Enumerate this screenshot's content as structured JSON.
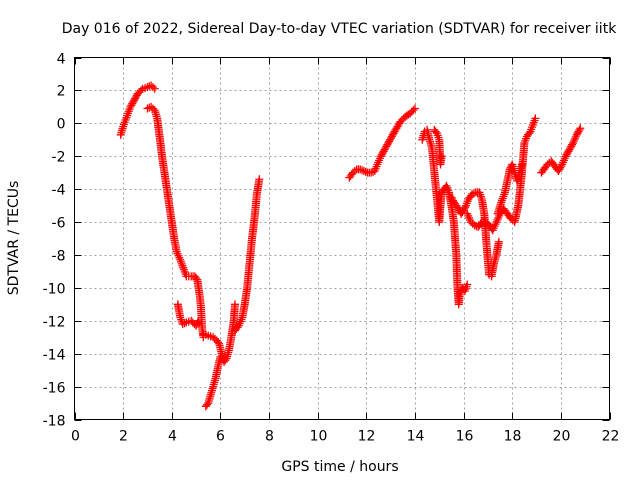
{
  "chart_data": {
    "type": "scatter",
    "title": "Day 016 of 2022, Sidereal Day-to-day VTEC variation (SDTVAR) for receiver iitk",
    "xlabel": "GPS time / hours",
    "ylabel": "SDTVAR / TECUs",
    "xlim": [
      0,
      22
    ],
    "ylim": [
      -18,
      4
    ],
    "xticks": [
      0,
      2,
      4,
      6,
      8,
      10,
      12,
      14,
      16,
      18,
      20,
      22
    ],
    "yticks": [
      -18,
      -16,
      -14,
      -12,
      -10,
      -8,
      -6,
      -4,
      -2,
      0,
      2,
      4
    ],
    "grid": true,
    "marker": "+",
    "series": [
      {
        "name": "SDTVAR",
        "color": "#ff0000",
        "segments": [
          [
            [
              1.9,
              -0.7
            ],
            [
              2.0,
              -0.2
            ],
            [
              2.1,
              0.2
            ],
            [
              2.2,
              0.6
            ],
            [
              2.3,
              1.0
            ],
            [
              2.45,
              1.4
            ],
            [
              2.6,
              1.8
            ],
            [
              2.8,
              2.1
            ],
            [
              3.0,
              2.2
            ],
            [
              3.15,
              2.3
            ],
            [
              3.3,
              2.1
            ]
          ],
          [
            [
              3.0,
              0.9
            ],
            [
              3.15,
              1.0
            ],
            [
              3.3,
              0.8
            ],
            [
              3.4,
              0.3
            ],
            [
              3.5,
              -0.8
            ],
            [
              3.6,
              -2.0
            ],
            [
              3.7,
              -3.0
            ],
            [
              3.8,
              -4.0
            ],
            [
              3.9,
              -5.0
            ],
            [
              4.0,
              -6.0
            ],
            [
              4.1,
              -7.0
            ],
            [
              4.2,
              -7.8
            ],
            [
              4.35,
              -8.3
            ],
            [
              4.5,
              -8.9
            ],
            [
              4.6,
              -9.3
            ],
            [
              4.8,
              -9.3
            ],
            [
              4.95,
              -9.3
            ],
            [
              5.05,
              -9.5
            ],
            [
              5.15,
              -10.5
            ],
            [
              5.2,
              -11.2
            ],
            [
              5.25,
              -12.5
            ],
            [
              5.3,
              -13.0
            ]
          ],
          [
            [
              4.25,
              -11.0
            ],
            [
              4.35,
              -11.8
            ],
            [
              4.45,
              -12.2
            ],
            [
              4.6,
              -12.1
            ],
            [
              4.8,
              -12.0
            ],
            [
              5.0,
              -12.3
            ],
            [
              5.1,
              -12.0
            ]
          ],
          [
            [
              5.3,
              -12.8
            ],
            [
              5.5,
              -12.9
            ],
            [
              5.7,
              -13.0
            ],
            [
              5.85,
              -13.2
            ],
            [
              5.95,
              -13.4
            ],
            [
              6.05,
              -14.0
            ],
            [
              6.15,
              -14.5
            ],
            [
              6.25,
              -14.3
            ],
            [
              6.35,
              -13.8
            ],
            [
              6.45,
              -13.0
            ],
            [
              6.55,
              -12.0
            ],
            [
              6.6,
              -11.0
            ]
          ],
          [
            [
              5.4,
              -17.2
            ],
            [
              5.5,
              -17.0
            ],
            [
              5.6,
              -16.5
            ],
            [
              5.7,
              -16.0
            ],
            [
              5.8,
              -15.5
            ],
            [
              5.9,
              -14.8
            ],
            [
              6.0,
              -14.2
            ]
          ],
          [
            [
              6.6,
              -12.6
            ],
            [
              6.75,
              -12.3
            ],
            [
              6.9,
              -11.8
            ],
            [
              7.0,
              -11.0
            ],
            [
              7.1,
              -10.0
            ],
            [
              7.2,
              -8.5
            ],
            [
              7.3,
              -7.0
            ],
            [
              7.4,
              -5.8
            ],
            [
              7.5,
              -4.3
            ],
            [
              7.6,
              -3.4
            ]
          ],
          [
            [
              11.3,
              -3.3
            ],
            [
              11.45,
              -3.0
            ],
            [
              11.6,
              -2.8
            ],
            [
              11.75,
              -2.8
            ],
            [
              11.9,
              -2.9
            ],
            [
              12.05,
              -3.0
            ],
            [
              12.2,
              -3.0
            ],
            [
              12.35,
              -2.9
            ],
            [
              12.45,
              -2.5
            ],
            [
              12.6,
              -2.0
            ],
            [
              12.75,
              -1.6
            ],
            [
              12.9,
              -1.2
            ],
            [
              13.05,
              -0.8
            ],
            [
              13.2,
              -0.4
            ],
            [
              13.4,
              0.1
            ],
            [
              13.6,
              0.4
            ],
            [
              13.8,
              0.6
            ],
            [
              14.0,
              0.9
            ]
          ],
          [
            [
              14.3,
              -1.0
            ],
            [
              14.4,
              -0.5
            ],
            [
              14.5,
              -0.4
            ],
            [
              14.6,
              -1.0
            ],
            [
              14.7,
              -1.5
            ],
            [
              14.8,
              -3.0
            ],
            [
              14.9,
              -4.5
            ],
            [
              15.0,
              -6.0
            ],
            [
              15.05,
              -5.0
            ],
            [
              15.1,
              -4.2
            ],
            [
              15.2,
              -4.0
            ]
          ],
          [
            [
              14.8,
              -0.4
            ],
            [
              14.9,
              -0.6
            ],
            [
              15.0,
              -1.0
            ],
            [
              15.05,
              -2.5
            ],
            [
              15.1,
              -2.0
            ]
          ],
          [
            [
              15.2,
              -4.0
            ],
            [
              15.3,
              -3.8
            ],
            [
              15.4,
              -4.2
            ],
            [
              15.5,
              -5.0
            ],
            [
              15.6,
              -6.0
            ],
            [
              15.7,
              -8.0
            ],
            [
              15.75,
              -10.0
            ],
            [
              15.8,
              -11.0
            ],
            [
              15.85,
              -10.3
            ],
            [
              15.95,
              -10.0
            ],
            [
              16.05,
              -10.2
            ],
            [
              16.15,
              -9.8
            ]
          ],
          [
            [
              15.5,
              -4.5
            ],
            [
              15.6,
              -4.8
            ],
            [
              15.7,
              -5.0
            ],
            [
              15.8,
              -5.2
            ],
            [
              15.9,
              -5.5
            ],
            [
              16.0,
              -5.3
            ],
            [
              16.1,
              -5.0
            ],
            [
              16.2,
              -4.6
            ],
            [
              16.35,
              -4.3
            ],
            [
              16.5,
              -4.2
            ],
            [
              16.65,
              -4.2
            ],
            [
              16.75,
              -4.6
            ],
            [
              16.85,
              -5.5
            ],
            [
              16.95,
              -7.5
            ],
            [
              17.05,
              -9.2
            ],
            [
              17.15,
              -9.3
            ],
            [
              17.25,
              -8.5
            ],
            [
              17.35,
              -8.0
            ],
            [
              17.45,
              -7.2
            ]
          ],
          [
            [
              16.15,
              -5.5
            ],
            [
              16.3,
              -6.0
            ],
            [
              16.45,
              -6.2
            ],
            [
              16.6,
              -6.3
            ],
            [
              16.75,
              -6.0
            ],
            [
              16.9,
              -6.0
            ],
            [
              17.05,
              -6.2
            ],
            [
              17.2,
              -6.5
            ],
            [
              17.35,
              -6.0
            ],
            [
              17.5,
              -5.5
            ],
            [
              17.65,
              -5.2
            ],
            [
              17.8,
              -5.5
            ],
            [
              17.95,
              -5.8
            ],
            [
              18.1,
              -6.0
            ],
            [
              18.25,
              -5.0
            ],
            [
              18.4,
              -3.0
            ],
            [
              18.5,
              -1.2
            ],
            [
              18.6,
              -0.8
            ],
            [
              18.75,
              -0.5
            ],
            [
              18.85,
              -0.1
            ],
            [
              18.95,
              0.3
            ]
          ],
          [
            [
              17.4,
              -5.5
            ],
            [
              17.55,
              -4.8
            ],
            [
              17.7,
              -4.2
            ],
            [
              17.8,
              -3.5
            ],
            [
              17.9,
              -2.8
            ],
            [
              18.0,
              -2.5
            ],
            [
              18.1,
              -3.0
            ],
            [
              18.2,
              -3.5
            ],
            [
              18.3,
              -3.0
            ],
            [
              18.4,
              -2.5
            ]
          ],
          [
            [
              19.2,
              -3.0
            ],
            [
              19.3,
              -2.8
            ],
            [
              19.45,
              -2.5
            ],
            [
              19.6,
              -2.3
            ],
            [
              19.75,
              -2.6
            ],
            [
              19.9,
              -2.9
            ],
            [
              20.05,
              -2.5
            ],
            [
              20.2,
              -2.0
            ],
            [
              20.35,
              -1.6
            ],
            [
              20.5,
              -1.2
            ],
            [
              20.65,
              -0.7
            ],
            [
              20.8,
              -0.3
            ]
          ]
        ]
      }
    ]
  }
}
